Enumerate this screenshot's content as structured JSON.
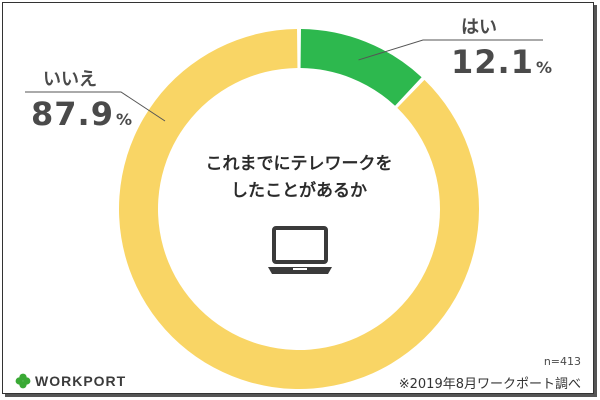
{
  "chart_data": {
    "type": "pie",
    "title": "これまでにテレワークを\nしたことがあるか",
    "slices": [
      {
        "label": "はい",
        "value": 12.1,
        "display": "12.1",
        "color": "#2db84e"
      },
      {
        "label": "いいえ",
        "value": 87.9,
        "display": "87.9",
        "color": "#f9d565"
      }
    ],
    "percent_sign": "%",
    "donut": true,
    "center_icon": "laptop-icon"
  },
  "footer": {
    "sample_size": "n=413",
    "source": "※2019年8月ワークポート調べ"
  },
  "brand": {
    "name": "WORKPORT",
    "icon": "clover-icon",
    "color": "#3aa935"
  }
}
